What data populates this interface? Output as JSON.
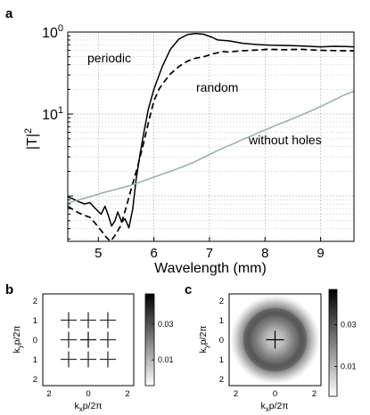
{
  "chart_data": [
    {
      "panel": "a",
      "type": "line",
      "xlabel": "Wavelength (mm)",
      "ylabel": "|T|",
      "ylabel_sup": "2",
      "xlim": [
        4.45,
        9.6
      ],
      "ylim_log": [
        0.0028,
        1.0
      ],
      "yscale": "log",
      "x_ticks": [
        "5",
        "6",
        "7",
        "8",
        "9"
      ],
      "y_tick_labels": [
        {
          "base": "10",
          "exp": "0"
        },
        {
          "base": "10",
          "exp": "1"
        }
      ],
      "grid": true,
      "series": [
        {
          "name": "periodic",
          "style": "solid",
          "color": "#000000",
          "points": [
            [
              4.45,
              0.0098
            ],
            [
              4.55,
              0.0092
            ],
            [
              4.65,
              0.0085
            ],
            [
              4.75,
              0.008
            ],
            [
              4.85,
              0.0083
            ],
            [
              4.95,
              0.007
            ],
            [
              5.05,
              0.006
            ],
            [
              5.12,
              0.0075
            ],
            [
              5.18,
              0.0058
            ],
            [
              5.24,
              0.0043
            ],
            [
              5.3,
              0.005
            ],
            [
              5.35,
              0.0064
            ],
            [
              5.42,
              0.0048
            ],
            [
              5.48,
              0.0053
            ],
            [
              5.55,
              0.0041
            ],
            [
              5.62,
              0.007
            ],
            [
              5.68,
              0.016
            ],
            [
              5.75,
              0.032
            ],
            [
              5.82,
              0.06
            ],
            [
              5.9,
              0.115
            ],
            [
              6.0,
              0.2
            ],
            [
              6.15,
              0.38
            ],
            [
              6.3,
              0.62
            ],
            [
              6.45,
              0.82
            ],
            [
              6.6,
              0.93
            ],
            [
              6.75,
              0.96
            ],
            [
              6.9,
              0.94
            ],
            [
              7.05,
              0.86
            ],
            [
              7.15,
              0.8
            ],
            [
              7.35,
              0.78
            ],
            [
              7.6,
              0.73
            ],
            [
              7.85,
              0.705
            ],
            [
              8.1,
              0.69
            ],
            [
              8.4,
              0.685
            ],
            [
              8.7,
              0.675
            ],
            [
              9.0,
              0.66
            ],
            [
              9.25,
              0.67
            ],
            [
              9.45,
              0.665
            ],
            [
              9.6,
              0.66
            ]
          ]
        },
        {
          "name": "random",
          "style": "dashed",
          "color": "#000000",
          "points": [
            [
              4.45,
              0.0075
            ],
            [
              4.55,
              0.0068
            ],
            [
              4.65,
              0.0062
            ],
            [
              4.75,
              0.0058
            ],
            [
              4.85,
              0.0055
            ],
            [
              4.95,
              0.0046
            ],
            [
              5.05,
              0.0038
            ],
            [
              5.15,
              0.0031
            ],
            [
              5.22,
              0.0028
            ],
            [
              5.3,
              0.0033
            ],
            [
              5.4,
              0.0043
            ],
            [
              5.5,
              0.0072
            ],
            [
              5.6,
              0.0128
            ],
            [
              5.7,
              0.022
            ],
            [
              5.8,
              0.04
            ],
            [
              5.9,
              0.078
            ],
            [
              6.0,
              0.145
            ],
            [
              6.1,
              0.205
            ],
            [
              6.2,
              0.255
            ],
            [
              6.3,
              0.31
            ],
            [
              6.45,
              0.38
            ],
            [
              6.6,
              0.44
            ],
            [
              6.75,
              0.48
            ],
            [
              6.9,
              0.5
            ],
            [
              7.05,
              0.54
            ],
            [
              7.25,
              0.58
            ],
            [
              7.35,
              0.57
            ],
            [
              7.55,
              0.59
            ],
            [
              7.8,
              0.6
            ],
            [
              8.05,
              0.615
            ],
            [
              8.35,
              0.61
            ],
            [
              8.65,
              0.615
            ],
            [
              8.95,
              0.6
            ],
            [
              9.25,
              0.595
            ],
            [
              9.6,
              0.59
            ]
          ]
        },
        {
          "name": "without holes",
          "style": "solid",
          "color": "#8fb0b0",
          "points": [
            [
              4.45,
              0.0082
            ],
            [
              4.6,
              0.0088
            ],
            [
              4.75,
              0.0094
            ],
            [
              4.9,
              0.01
            ],
            [
              5.05,
              0.0108
            ],
            [
              5.2,
              0.0115
            ],
            [
              5.35,
              0.0122
            ],
            [
              5.5,
              0.013
            ],
            [
              5.65,
              0.014
            ],
            [
              5.8,
              0.0152
            ],
            [
              5.95,
              0.0165
            ],
            [
              6.1,
              0.018
            ],
            [
              6.25,
              0.0195
            ],
            [
              6.4,
              0.0212
            ],
            [
              6.55,
              0.0232
            ],
            [
              6.7,
              0.0255
            ],
            [
              6.85,
              0.0285
            ],
            [
              7.0,
              0.032
            ],
            [
              7.15,
              0.036
            ],
            [
              7.3,
              0.04
            ],
            [
              7.45,
              0.044
            ],
            [
              7.6,
              0.049
            ],
            [
              7.75,
              0.054
            ],
            [
              7.9,
              0.06
            ],
            [
              8.05,
              0.066
            ],
            [
              8.2,
              0.073
            ],
            [
              8.35,
              0.08
            ],
            [
              8.5,
              0.088
            ],
            [
              8.65,
              0.097
            ],
            [
              8.8,
              0.107
            ],
            [
              8.95,
              0.119
            ],
            [
              9.1,
              0.133
            ],
            [
              9.25,
              0.149
            ],
            [
              9.4,
              0.168
            ],
            [
              9.6,
              0.19
            ]
          ]
        }
      ]
    },
    {
      "panel": "b",
      "type": "heatmap",
      "xlabel": "k",
      "xlabel_sub": "x",
      "xlabel_rest": "p/2π",
      "ylabel": "k",
      "ylabel_sub": "y",
      "ylabel_rest": "p/2π",
      "x_ticks": [
        "2",
        "0",
        "2"
      ],
      "y_ticks": [
        "2",
        "1",
        "0",
        "1",
        "2"
      ],
      "colorbar_ticks": [
        "0.03",
        "0.01"
      ],
      "peaks": [
        [
          -1,
          1
        ],
        [
          0,
          1
        ],
        [
          1,
          1
        ],
        [
          -1,
          0
        ],
        [
          0,
          0
        ],
        [
          1,
          0
        ],
        [
          -1,
          -1
        ],
        [
          0,
          -1
        ],
        [
          1,
          -1
        ]
      ]
    },
    {
      "panel": "c",
      "type": "heatmap",
      "xlabel": "k",
      "xlabel_sub": "x",
      "xlabel_rest": "p/2π",
      "ylabel": "k",
      "ylabel_sub": "y",
      "ylabel_rest": "p/2π",
      "x_ticks": [
        "2",
        "0",
        "2"
      ],
      "y_ticks": [
        "2",
        "1",
        "0",
        "1",
        "2"
      ],
      "colorbar_ticks": [
        "0.03",
        "0.01"
      ],
      "ring_radius": 1.0
    }
  ],
  "panel_labels": {
    "a": "a",
    "b": "b",
    "c": "c"
  },
  "annotations": {
    "periodic": "periodic",
    "random": "random",
    "without_holes": "without holes"
  }
}
